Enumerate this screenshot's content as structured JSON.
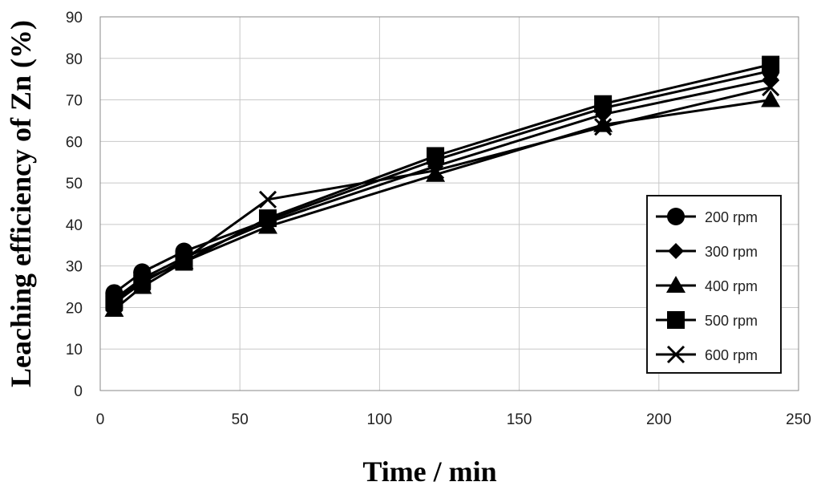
{
  "chart_data": {
    "type": "line",
    "title": "",
    "xlabel": "Time / min",
    "ylabel": "Leaching efficiency of Zn (%)",
    "xlim": [
      0,
      250
    ],
    "ylim": [
      0,
      90
    ],
    "xticks": [
      "0",
      "50",
      "100",
      "150",
      "200",
      "250"
    ],
    "yticks": [
      "0",
      "10",
      "20",
      "30",
      "40",
      "50",
      "60",
      "70",
      "80",
      "90"
    ],
    "grid": true,
    "legend_position": "right",
    "x": [
      5,
      15,
      30,
      60,
      120,
      180,
      240
    ],
    "series": [
      {
        "name": "200 rpm",
        "marker": "circle",
        "values": [
          23.5,
          28.5,
          33.5,
          41,
          55.5,
          68,
          77
        ]
      },
      {
        "name": "300 rpm",
        "marker": "diamond",
        "values": [
          22,
          27,
          32,
          40.5,
          54,
          66.5,
          75
        ]
      },
      {
        "name": "400 rpm",
        "marker": "triangle",
        "values": [
          19.5,
          25,
          31,
          39.5,
          52,
          64,
          70
        ]
      },
      {
        "name": "500 rpm",
        "marker": "square",
        "values": [
          21.5,
          26.5,
          31,
          41.5,
          56.5,
          69,
          78.5
        ]
      },
      {
        "name": "600 rpm",
        "marker": "x",
        "values": [
          21,
          26,
          31.5,
          46,
          53,
          63.5,
          73
        ]
      }
    ]
  }
}
